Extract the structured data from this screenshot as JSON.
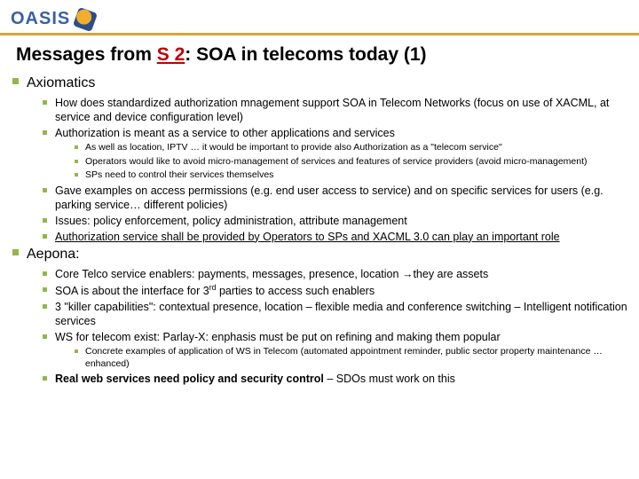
{
  "colors": {
    "brand_blue": "#3a5fa6",
    "brand_gold": "#efae2b",
    "accent_green": "#92b64c",
    "title_red": "#c00000",
    "text_black": "#000000",
    "hr_gold": "#d9a53a"
  },
  "logo": {
    "text": "OASIS"
  },
  "title": {
    "prefix": "Messages from ",
    "s2": "S 2",
    "suffix": ": SOA in telecoms today (1)",
    "fontsize": 21
  },
  "sections": [
    {
      "heading": "Axiomatics",
      "items": [
        {
          "text": "How does standardized authorization mnagement support SOA in Telecom Networks (focus on use of XACML, at service and device configuration level)"
        },
        {
          "text": "Authorization is meant as a service to other applications and services",
          "sub": [
            {
              "text": "As well as location, IPTV … it would be important to provide also Authorization as a \"telecom service\""
            },
            {
              "text": "Operators would like to avoid micro-management of services and features of service providers (avoid micro-management)"
            },
            {
              "text": "SPs need to control their services themselves"
            }
          ]
        },
        {
          "text": "Gave examples on access permissions (e.g. end user access to service) and on specific services for users (e.g. parking service… different policies)"
        },
        {
          "text": "Issues: policy enforcement, policy administration, attribute management"
        },
        {
          "text": "Authorization service shall be provided by Operators to SPs and XACML 3.0 can play an important role",
          "underline": true
        }
      ]
    },
    {
      "heading": "Aepona:",
      "items": [
        {
          "text_pre": "Core Telco service enablers: payments, messages, presence, location",
          "text_post": "they are assets",
          "arrow": true
        },
        {
          "html": "SOA is about the interface for 3<sup>rd</sup> parties to access such enablers"
        },
        {
          "text": "3 \"killer capabilities\": contextual presence, location – flexible media and conference switching – Intelligent notification services"
        },
        {
          "text": "WS for telecom exist: Parlay-X: enphasis must be put on refining and making them popular",
          "sub": [
            {
              "text": "Concrete examples of application of WS in Telecom (automated appointment reminder, public sector property maintenance … enhanced)"
            }
          ]
        },
        {
          "html": "<b>Real web services need policy and security control</b> – SDOs must work on this"
        }
      ]
    }
  ]
}
